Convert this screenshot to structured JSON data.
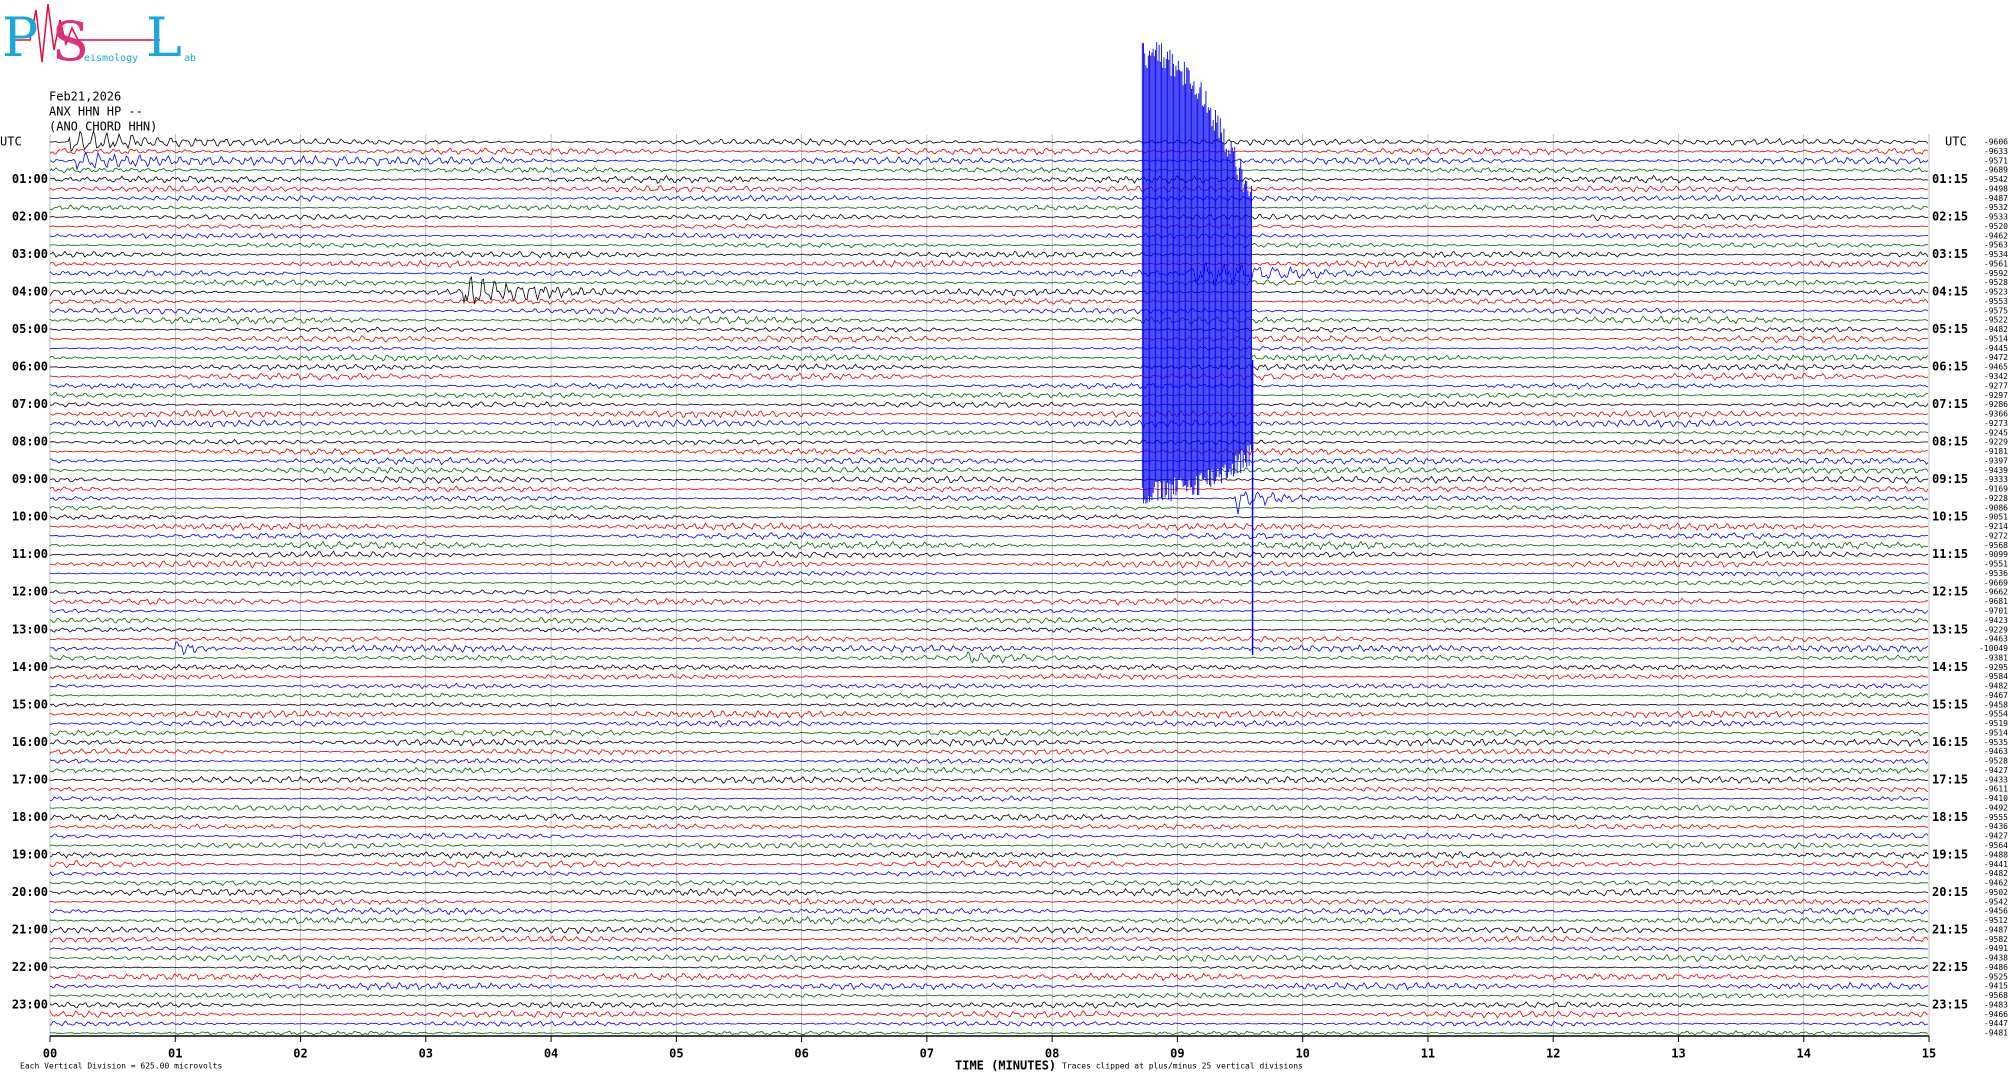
{
  "chart_data": {
    "type": "helicorder",
    "logo": {
      "letters": [
        "P",
        "S",
        "L"
      ],
      "words": [
        "eismology",
        "ab"
      ]
    },
    "header": [
      "Feb21,2026",
      "ANX HHN HP --",
      "(ANO CHORD HHN)"
    ],
    "utc_label": "UTC",
    "left_labels": [
      "01:00",
      "02:00",
      "03:00",
      "04:00",
      "05:00",
      "06:00",
      "07:00",
      "08:00",
      "09:00",
      "10:00",
      "11:00",
      "12:00",
      "13:00",
      "14:00",
      "15:00",
      "16:00",
      "17:00",
      "18:00",
      "19:00",
      "20:00",
      "21:00",
      "22:00",
      "23:00"
    ],
    "right_labels": [
      "01:15",
      "02:15",
      "03:15",
      "04:15",
      "05:15",
      "06:15",
      "07:15",
      "08:15",
      "09:15",
      "10:15",
      "11:15",
      "12:15",
      "13:15",
      "14:15",
      "15:15",
      "16:15",
      "17:15",
      "18:15",
      "19:15",
      "20:15",
      "21:15",
      "22:15",
      "23:15"
    ],
    "trace_offsets": [
      -9606,
      -9633,
      -9571,
      -9689,
      -9542,
      -9498,
      -9487,
      -9532,
      -9533,
      -9520,
      -9462,
      -9563,
      -9534,
      -9561,
      -9592,
      -9528,
      -9523,
      -9553,
      -9575,
      -9522,
      -9482,
      -9514,
      -9445,
      -9472,
      -9465,
      -9342,
      -9277,
      -9297,
      -9286,
      -9366,
      -9273,
      -9245,
      -9229,
      -9181,
      -9397,
      -9439,
      -9333,
      -9169,
      -9228,
      -9086,
      -9051,
      -9214,
      -9272,
      -9568,
      -9099,
      -9551,
      -9536,
      -9669,
      -9662,
      -9681,
      -9701,
      -9423,
      -9229,
      -9463,
      -10049,
      -9381,
      -9295,
      -9584,
      -9482,
      -9467,
      -9458,
      -9554,
      -9519,
      -9514,
      -9535,
      -9463,
      -9528,
      -9427,
      -9433,
      -9611,
      -9410,
      -9492,
      -9555,
      -9436,
      -9427,
      -9564,
      -9488,
      -9441,
      -9482,
      -9462,
      -9502,
      -9542,
      -9456,
      -9512,
      -9487,
      -9582,
      -9491,
      -9438,
      -9486,
      -9525,
      -9415,
      -9568,
      -9483,
      -9466,
      -9447,
      -9481
    ],
    "trace_colors": [
      "#000000",
      "#e00000",
      "#0000ee",
      "#006400"
    ],
    "xlim": [
      0,
      15
    ],
    "xticks": [
      {
        "value": 0,
        "label": "00"
      },
      {
        "value": 1,
        "label": "01"
      },
      {
        "value": 2,
        "label": "02"
      },
      {
        "value": 3,
        "label": "03"
      },
      {
        "value": 4,
        "label": "04"
      },
      {
        "value": 5,
        "label": "05"
      },
      {
        "value": 6,
        "label": "06"
      },
      {
        "value": 7,
        "label": "07"
      },
      {
        "value": 8,
        "label": "08"
      },
      {
        "value": 9,
        "label": "09"
      },
      {
        "value": 10,
        "label": "10"
      },
      {
        "value": 11,
        "label": "11"
      },
      {
        "value": 12,
        "label": "12"
      },
      {
        "value": 13,
        "label": "13"
      },
      {
        "value": 14,
        "label": "14"
      },
      {
        "value": 15,
        "label": "15"
      }
    ],
    "x_label": "TIME (MINUTES)",
    "clip_note": "Traces clipped at plus/minus 25 vertical divisions",
    "scale_note": "Each Vertical Division =  625.00 microvolts",
    "grid": true
  }
}
